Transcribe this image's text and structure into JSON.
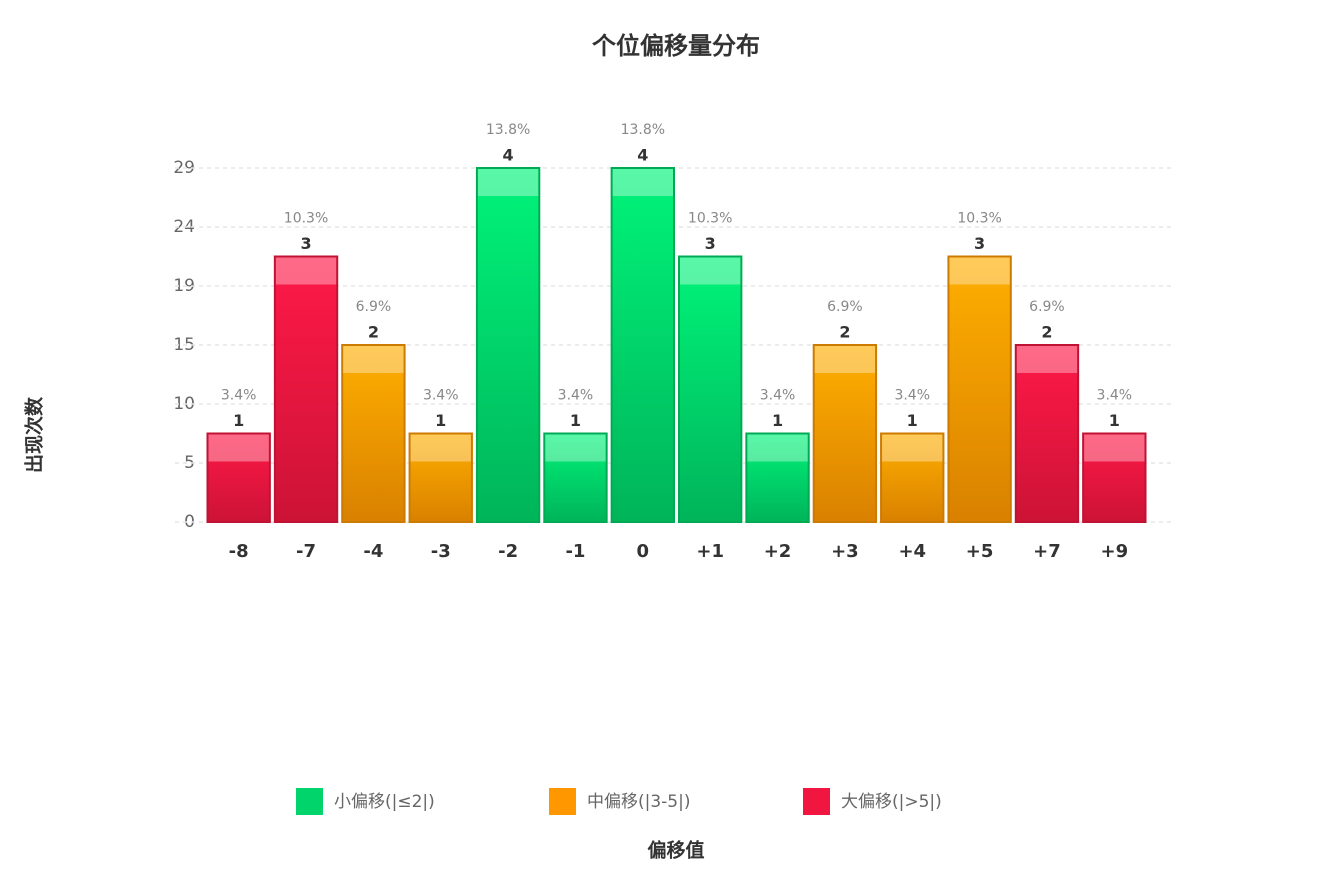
{
  "chart_data": {
    "type": "bar",
    "title": "个位偏移量分布",
    "x_label": "偏移值",
    "y_label": "出现次数",
    "categories": [
      "-8",
      "-7",
      "-4",
      "-3",
      "-2",
      "-1",
      "0",
      "+1",
      "+2",
      "+3",
      "+4",
      "+5",
      "+7",
      "+9"
    ],
    "series": [
      {
        "name": "小偏移(|≤2|)",
        "color": "#00d46a",
        "values": [
          null,
          null,
          null,
          null,
          29,
          7.25,
          29,
          21.75,
          7.25,
          null,
          null,
          null,
          null,
          null
        ]
      },
      {
        "name": "中偏移(|3-5|)",
        "color": "#ff9800",
        "values": [
          null,
          null,
          14.5,
          7.25,
          null,
          null,
          null,
          null,
          null,
          14.5,
          7.25,
          21.75,
          null,
          null
        ]
      },
      {
        "name": "大偏移(|>5|)",
        "color": "#f0163f",
        "values": [
          7.25,
          21.75,
          null,
          null,
          null,
          null,
          null,
          null,
          null,
          null,
          null,
          null,
          14.5,
          7.25
        ]
      }
    ],
    "counts": [
      1,
      3,
      2,
      1,
      4,
      1,
      4,
      3,
      1,
      2,
      1,
      3,
      2,
      1
    ],
    "shares": [
      "3.4%",
      "10.3%",
      "6.9%",
      "3.4%",
      "13.8%",
      "3.4%",
      "13.8%",
      "10.3%",
      "3.4%",
      "6.9%",
      "3.4%",
      "10.3%",
      "6.9%",
      "3.4%"
    ],
    "ylim": [
      0,
      29
    ],
    "yticks": [
      0,
      {
        "value": 4.833,
        "label": "5"
      },
      {
        "value": 9.667,
        "label": "10"
      },
      {
        "value": 14.5,
        "label": "15"
      },
      {
        "value": 19.333,
        "label": "19"
      },
      {
        "value": 24.167,
        "label": "24"
      },
      29
    ],
    "grid": true,
    "legend": "bottom"
  }
}
